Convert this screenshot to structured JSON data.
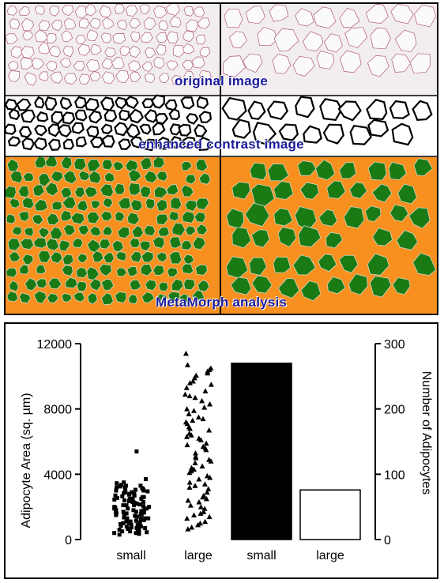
{
  "figure": {
    "captions": {
      "original": "original image",
      "enhanced": "enhanced contrast image",
      "analysis": "MetaMorph analysis"
    },
    "colors": {
      "tissue_bg": "#f2eeef",
      "cell_wall_stain": "#b0587f",
      "contrast_wall": "#000000",
      "analysis_bg": "#f7901e",
      "adipocyte_fill": "#1a7a14",
      "caption": "#1a1a9a"
    }
  },
  "chart_data": {
    "type": "scatter",
    "ylabel": "Adipocyte Area (sq. µm)",
    "y2label": "Number of Adipocytes",
    "ylim": [
      0,
      12000
    ],
    "y2lim": [
      0,
      300
    ],
    "yticks": [
      "0",
      "4000",
      "8000",
      "12000"
    ],
    "y2ticks": [
      "0",
      "100",
      "200",
      "300"
    ],
    "categories": [
      "small",
      "large",
      "small",
      "large"
    ],
    "scatter_series": [
      {
        "group": "small",
        "marker": "square",
        "values": [
          5400,
          3700,
          3500,
          3450,
          3350,
          3300,
          3250,
          3200,
          3150,
          3100,
          3050,
          3000,
          2950,
          2900,
          2850,
          2800,
          2750,
          2700,
          2650,
          2600,
          2550,
          2500,
          2450,
          2400,
          2350,
          2300,
          2250,
          2200,
          2150,
          2100,
          2050,
          2000,
          1950,
          1900,
          1850,
          1800,
          1750,
          1700,
          1650,
          1600,
          1550,
          1500,
          1450,
          1400,
          1350,
          1300,
          1250,
          1200,
          1150,
          1100,
          1050,
          1000,
          950,
          900,
          850,
          800,
          750,
          700,
          650,
          600,
          550,
          500,
          450,
          400,
          350,
          300,
          3300,
          3100,
          2900,
          2700,
          2500,
          2300,
          2100,
          1900,
          1700,
          1500,
          1300,
          1100,
          900,
          700,
          500,
          3200,
          2800,
          2400,
          2000,
          1600,
          1200,
          800,
          400,
          3000,
          2600,
          2200,
          1800,
          1400,
          1000,
          600,
          2700,
          2300,
          1900,
          1500,
          1100,
          700,
          2500,
          2100,
          1700,
          1300,
          900,
          500
        ]
      },
      {
        "group": "large",
        "marker": "triangle",
        "values": [
          11400,
          10700,
          10500,
          10400,
          10300,
          10200,
          10050,
          9900,
          9700,
          9500,
          9300,
          9100,
          8900,
          8700,
          8500,
          8300,
          8100,
          7900,
          7700,
          7500,
          7300,
          7100,
          6900,
          6700,
          6500,
          6300,
          6100,
          5900,
          5700,
          5500,
          5300,
          5100,
          4900,
          4700,
          4500,
          4300,
          4100,
          3900,
          3700,
          3500,
          3300,
          3100,
          2900,
          2700,
          2500,
          2300,
          2100,
          1900,
          1700,
          1500,
          1300,
          1100,
          900,
          750,
          650,
          8000,
          7400,
          6800,
          6200,
          5600,
          5000,
          4400,
          3800,
          3200,
          2600,
          2000,
          1400,
          9600,
          8800,
          7200,
          6400,
          5800,
          4800,
          4200,
          3400,
          2400,
          1600,
          1000
        ]
      }
    ],
    "bar_series": [
      {
        "group": "small",
        "count": 270,
        "fill": "#000000"
      },
      {
        "group": "large",
        "count": 76,
        "fill": "#ffffff"
      }
    ]
  }
}
